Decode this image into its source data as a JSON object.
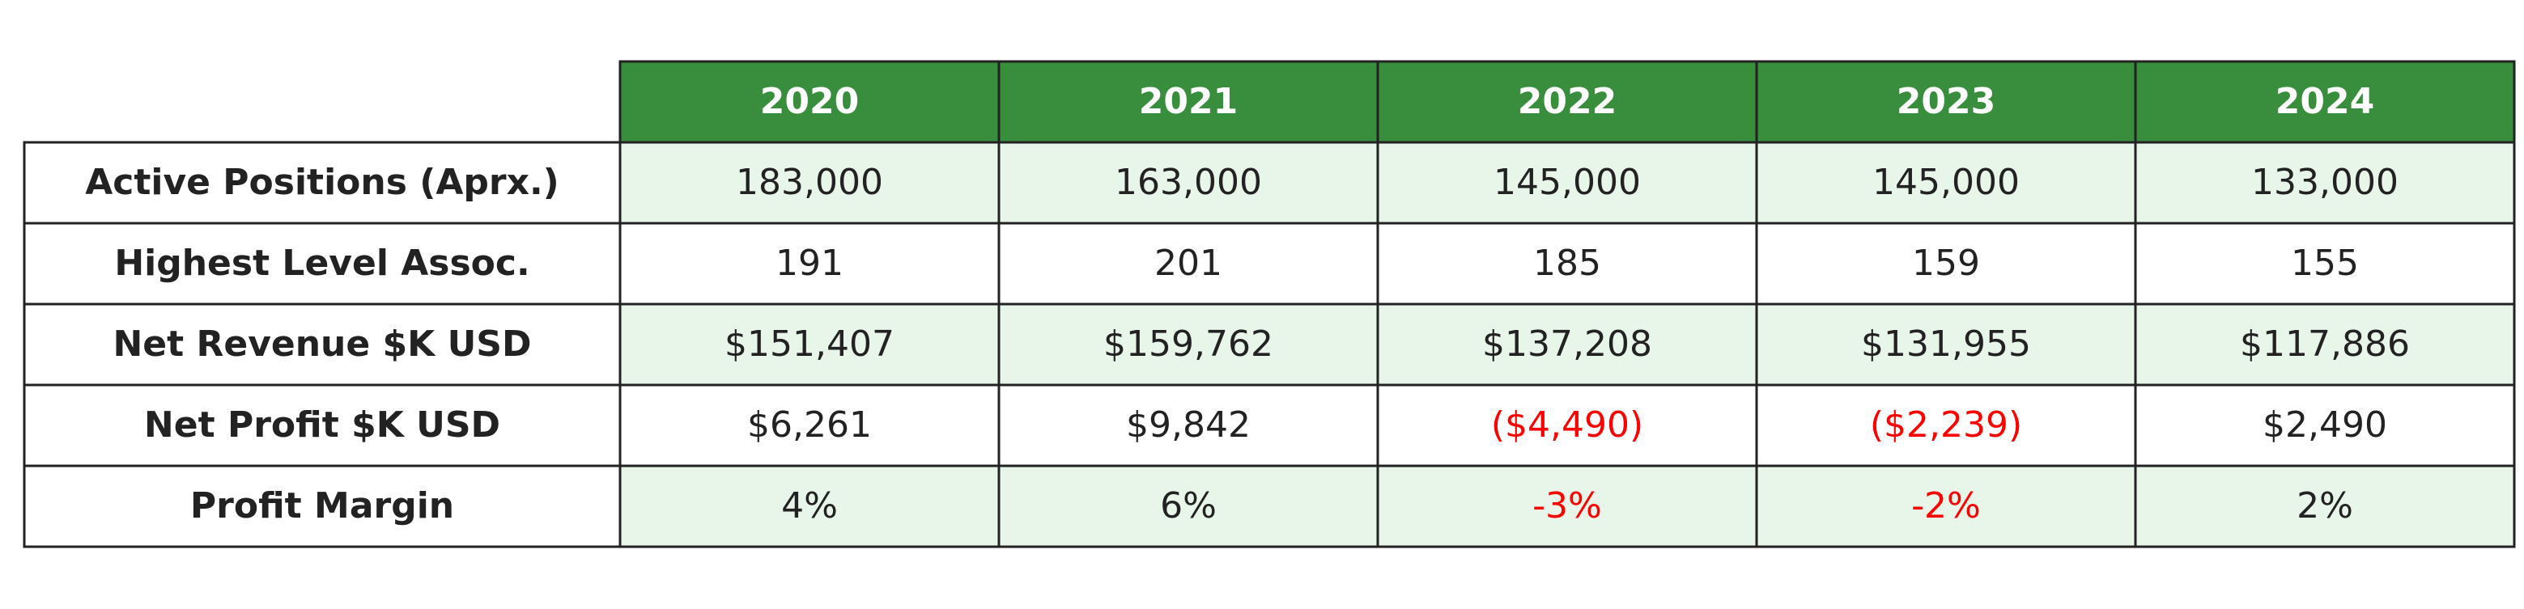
{
  "table": {
    "columns": [
      "2020",
      "2021",
      "2022",
      "2023",
      "2024"
    ],
    "rows": [
      {
        "label": "Active Positions (Aprx.)",
        "cells": [
          "183,000",
          "163,000",
          "145,000",
          "145,000",
          "133,000"
        ]
      },
      {
        "label": "Highest Level Assoc.",
        "cells": [
          "191",
          "201",
          "185",
          "159",
          "155"
        ]
      },
      {
        "label": "Net Revenue $K USD",
        "cells": [
          "$151,407",
          "$159,762",
          "$137,208",
          "$131,955",
          "$117,886"
        ]
      },
      {
        "label": "Net Profit $K USD",
        "cells": [
          "$6,261",
          "$9,842",
          "($4,490)",
          "($2,239)",
          "$2,490"
        ]
      },
      {
        "label": "Profit Margin",
        "cells": [
          "4%",
          "6%",
          "-3%",
          "-2%",
          "2%"
        ]
      }
    ]
  },
  "style": {
    "header_color": "#388e3c",
    "stripe_color": "#e8f5e9",
    "negative_color": "#ff0000",
    "text_color": "#222222"
  }
}
